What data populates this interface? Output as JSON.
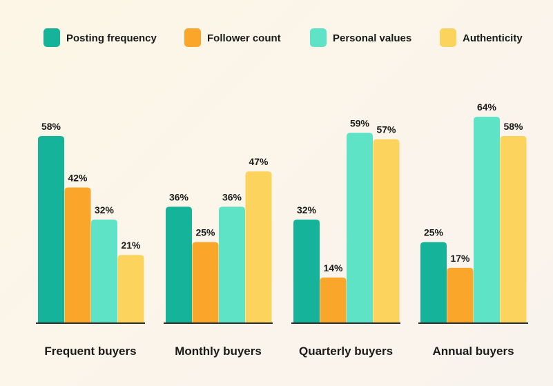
{
  "chart_data": {
    "type": "bar",
    "categories": [
      "Frequent buyers",
      "Monthly buyers",
      "Quarterly buyers",
      "Annual buyers"
    ],
    "series": [
      {
        "name": "Posting frequency",
        "color": "#14b39a",
        "values": [
          58,
          36,
          32,
          25
        ],
        "labels": [
          "58%",
          "36%",
          "32%",
          "25%"
        ]
      },
      {
        "name": "Follower count",
        "color": "#f9a62b",
        "values": [
          42,
          25,
          14,
          17
        ],
        "labels": [
          "42%",
          "25%",
          "14%",
          "17%"
        ]
      },
      {
        "name": "Personal values",
        "color": "#5fe3c7",
        "values": [
          32,
          36,
          59,
          64
        ],
        "labels": [
          "32%",
          "36%",
          "59%",
          "64%"
        ]
      },
      {
        "name": "Authenticity",
        "color": "#fcd45d",
        "values": [
          21,
          47,
          57,
          58
        ],
        "labels": [
          "21%",
          "47%",
          "57%",
          "58%"
        ]
      }
    ],
    "ylim": [
      0,
      64
    ],
    "legend_position": "top",
    "grid": false
  }
}
